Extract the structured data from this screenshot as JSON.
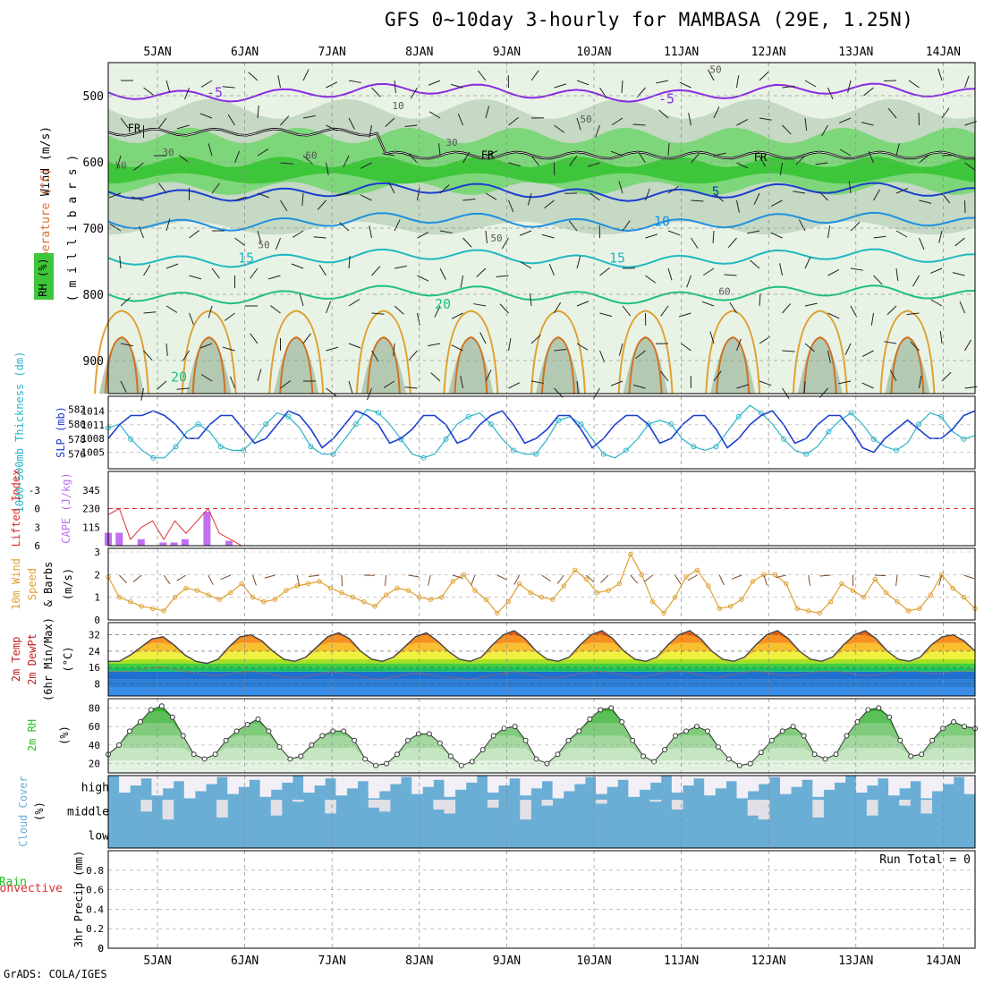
{
  "title": "GFS 0~10day 3-hourly for MAMBASA (29E, 1.25N)",
  "credit": "GrADS: COLA/IGES",
  "dates": [
    "5JAN",
    "6JAN",
    "7JAN",
    "8JAN",
    "9JAN",
    "10JAN",
    "11JAN",
    "12JAN",
    "13JAN",
    "14JAN"
  ],
  "panel_labels": {
    "upper": {
      "wind": "Wind (m/s)",
      "temperature": "Temperature (°C)",
      "rh": "RH (%)",
      "pressure": "( m i l l i b a r s )"
    },
    "slp": {
      "thickness": "1000-500mb Thickness (dm)",
      "slp": "SLP (mb)"
    },
    "cape": {
      "li": "Lifted Index",
      "cape": "CAPE (J/kg)"
    },
    "wind10": {
      "line1": "10m Wind",
      "line2": "Speed",
      "line3": "& Barbs",
      "unit": "(m/s)"
    },
    "temp2m": {
      "line1": "2m Temp",
      "line2": "2m DewPt",
      "line3": "(6hr Min/Max)",
      "unit": "(°C)"
    },
    "rh2m": {
      "line1": "2m RH",
      "unit": "(%)"
    },
    "cloud": {
      "line1": "Cloud Cover",
      "unit": "(%)",
      "levels": [
        "high",
        "middle",
        "low"
      ]
    },
    "precip": {
      "line1": "Total / Rain",
      "line2": "Convective",
      "line3": "3hr Precip (mm)",
      "run_total": "Run Total = 0"
    }
  },
  "colors": {
    "temp_line": "#8a2be2",
    "fr_line": "#000000",
    "slp": "#1a3fd0",
    "thickness": "#2ab4c8",
    "li": "#e03030",
    "cape": "#c070f0",
    "wind10": "#e0a030",
    "rh_green": "#22c022",
    "cloud": "#6aaed6"
  },
  "chart_data": [
    {
      "type": "contour",
      "name": "upper-air",
      "x": [
        "5JAN",
        "6JAN",
        "7JAN",
        "8JAN",
        "9JAN",
        "10JAN",
        "11JAN",
        "12JAN",
        "13JAN",
        "14JAN"
      ],
      "ylabel": "( m i l l i b a r s )",
      "yticks": [
        500,
        600,
        700,
        800,
        900
      ],
      "ylim": [
        950,
        450
      ],
      "contour_labels": {
        "temperature": [
          "-5",
          "5",
          "10",
          "15",
          "20"
        ],
        "rh": [
          "10",
          "30",
          "50",
          "60"
        ],
        "freezing": "FR"
      },
      "temperature_levels_mb": {
        "-5": 495,
        "5": 645,
        "10": 690,
        "15": 745,
        "20": 800
      }
    },
    {
      "type": "line",
      "name": "slp-thickness",
      "yticks_left": [
        576,
        578,
        580,
        582
      ],
      "yticks_right": [
        1005,
        1008,
        1011,
        1014
      ],
      "series": [
        {
          "name": "SLP",
          "values": [
            1008,
            1011,
            1013,
            1013,
            1014,
            1013,
            1011,
            1008,
            1008,
            1011,
            1013,
            1013,
            1010,
            1007,
            1008,
            1011,
            1014,
            1013,
            1010,
            1006,
            1008,
            1011,
            1014,
            1013,
            1011,
            1007,
            1008,
            1010,
            1013,
            1013,
            1011,
            1007,
            1008,
            1011,
            1013,
            1014,
            1011,
            1007,
            1008,
            1010,
            1013,
            1013,
            1010,
            1006,
            1008,
            1011,
            1013,
            1013,
            1011,
            1007,
            1008,
            1011,
            1013,
            1013,
            1010,
            1006,
            1008,
            1011,
            1013,
            1014,
            1011,
            1007,
            1008,
            1011,
            1013,
            1013,
            1010,
            1006,
            1005,
            1008,
            1010,
            1012,
            1010,
            1008,
            1008,
            1010,
            1013,
            1014
          ]
        },
        {
          "name": "Thickness",
          "values": [
            579.5,
            580,
            578,
            576.5,
            575.5,
            575.5,
            577,
            579,
            580,
            579,
            577,
            576.5,
            576.5,
            578,
            580,
            581.5,
            581,
            579.5,
            577,
            576,
            576,
            578,
            580,
            582,
            581.5,
            580,
            578,
            576,
            575.5,
            576,
            578,
            580,
            581,
            581.5,
            580,
            578,
            576.5,
            576,
            576,
            578,
            580.5,
            581,
            580,
            578,
            576,
            575.5,
            576.5,
            578,
            580,
            580.5,
            580,
            578,
            577,
            576.5,
            577,
            579,
            581,
            582.5,
            581.5,
            580,
            578,
            576.5,
            576,
            577,
            579,
            580.5,
            581.5,
            580,
            578,
            577,
            576.5,
            577.5,
            580,
            581.5,
            581,
            579,
            578,
            578.5
          ]
        }
      ]
    },
    {
      "type": "bar",
      "name": "cape-li",
      "yticks_li": [
        "-3",
        "0",
        "3",
        "6"
      ],
      "yticks_cape": [
        115,
        230,
        345
      ],
      "series": [
        {
          "name": "CAPE",
          "values": [
            80,
            80,
            0,
            40,
            0,
            20,
            20,
            40,
            0,
            210,
            0,
            30,
            0,
            0,
            0,
            0,
            0,
            0,
            0,
            0,
            0,
            0,
            0,
            0,
            0,
            0,
            0,
            0,
            0,
            0,
            0,
            0,
            0,
            0,
            0,
            0,
            0,
            0,
            0,
            0,
            0,
            0,
            0,
            0,
            0,
            0,
            0,
            0,
            0,
            0,
            0,
            0,
            0,
            0,
            0,
            0,
            0,
            0,
            0,
            0,
            0,
            0,
            0,
            0,
            0,
            0,
            0,
            0,
            0,
            0,
            0,
            0,
            0,
            0,
            0,
            0,
            0,
            0,
            0,
            0
          ]
        },
        {
          "name": "Lifted Index",
          "values": [
            1,
            0,
            5,
            3,
            2,
            5,
            2,
            4,
            2,
            0,
            4,
            5,
            6,
            6,
            6,
            6,
            6,
            6,
            6,
            6,
            6,
            6,
            6,
            6,
            6,
            6,
            6,
            6,
            6,
            6,
            6,
            6,
            6,
            6,
            6,
            6,
            6,
            6,
            6,
            6,
            6,
            6,
            6,
            6,
            6,
            6,
            6,
            6,
            6,
            6,
            6,
            6,
            6,
            6,
            6,
            6,
            6,
            6,
            6,
            6,
            6,
            6,
            6,
            6,
            6,
            6,
            6,
            6,
            6,
            6,
            6,
            6,
            6,
            6,
            6,
            6,
            6,
            6,
            6
          ]
        }
      ]
    },
    {
      "type": "line",
      "name": "wind10m",
      "yticks": [
        0,
        1,
        2,
        3
      ],
      "ylim": [
        0,
        3
      ],
      "series": [
        {
          "name": "10m Wind Speed",
          "values": [
            1.9,
            1.0,
            0.8,
            0.6,
            0.5,
            0.4,
            1.0,
            1.4,
            1.3,
            1.1,
            0.9,
            1.2,
            1.6,
            1.0,
            0.8,
            0.9,
            1.3,
            1.5,
            1.6,
            1.7,
            1.4,
            1.2,
            1.0,
            0.8,
            0.6,
            1.1,
            1.4,
            1.3,
            1.0,
            0.9,
            1.0,
            1.7,
            2.0,
            1.3,
            0.9,
            0.3,
            0.8,
            1.6,
            1.2,
            1.0,
            0.9,
            1.5,
            2.2,
            1.8,
            1.2,
            1.3,
            1.6,
            2.9,
            2.0,
            0.8,
            0.3,
            1.0,
            1.9,
            2.2,
            1.5,
            0.5,
            0.6,
            0.9,
            1.7,
            2.0,
            2.0,
            1.6,
            0.5,
            0.4,
            0.3,
            0.8,
            1.6,
            1.3,
            1.0,
            1.8,
            1.2,
            0.8,
            0.4,
            0.5,
            1.1,
            2.0,
            1.4,
            1.0,
            0.5
          ]
        }
      ]
    },
    {
      "type": "area",
      "name": "temp2m",
      "yticks": [
        8,
        16,
        24,
        32
      ],
      "ylim": [
        2,
        38
      ],
      "series": [
        {
          "name": "2m Temp",
          "values": [
            19,
            19,
            22,
            26,
            30,
            31,
            27,
            22,
            19,
            18,
            20,
            26,
            31,
            32,
            29,
            24,
            20,
            19,
            21,
            26,
            31,
            33,
            30,
            24,
            20,
            19,
            21,
            26,
            31,
            33,
            29,
            24,
            20,
            19,
            21,
            27,
            32,
            34,
            30,
            24,
            20,
            19,
            21,
            27,
            32,
            34,
            30,
            24,
            20,
            19,
            21,
            27,
            32,
            34,
            30,
            24,
            20,
            19,
            21,
            27,
            32,
            34,
            30,
            24,
            20,
            19,
            21,
            27,
            32,
            34,
            30,
            24,
            20,
            19,
            21,
            27,
            31,
            32,
            29,
            24
          ]
        },
        {
          "name": "2m DewPt",
          "values": [
            14,
            14,
            14,
            15,
            16,
            16,
            15,
            14,
            13,
            12,
            12,
            13,
            14,
            14,
            13,
            12,
            11,
            11,
            12,
            13,
            14,
            13,
            12,
            11,
            10,
            11,
            12,
            13,
            13,
            12,
            11,
            11,
            10,
            11,
            12,
            13,
            14,
            13,
            12,
            11,
            11,
            12,
            13,
            14,
            14,
            13,
            12,
            11,
            12,
            13,
            14,
            14,
            13,
            12,
            11,
            12,
            13,
            14,
            14,
            13,
            12,
            12,
            13,
            14,
            14,
            14,
            13,
            12,
            12,
            13,
            14,
            14,
            14,
            13,
            13,
            14,
            14,
            15
          ]
        }
      ]
    },
    {
      "type": "area",
      "name": "rh2m",
      "yticks": [
        20,
        40,
        60,
        80
      ],
      "ylim": [
        10,
        90
      ],
      "series": [
        {
          "name": "2m RH",
          "values": [
            30,
            40,
            55,
            65,
            78,
            82,
            70,
            50,
            30,
            25,
            30,
            45,
            55,
            62,
            68,
            55,
            38,
            25,
            28,
            40,
            50,
            55,
            55,
            45,
            25,
            18,
            20,
            30,
            45,
            52,
            52,
            42,
            28,
            18,
            22,
            35,
            50,
            58,
            60,
            45,
            25,
            20,
            30,
            45,
            55,
            68,
            78,
            80,
            65,
            45,
            28,
            22,
            35,
            50,
            55,
            60,
            55,
            38,
            25,
            18,
            20,
            32,
            45,
            55,
            60,
            50,
            30,
            25,
            30,
            50,
            65,
            78,
            80,
            70,
            45,
            28,
            30,
            45,
            58,
            65,
            60,
            58
          ]
        }
      ]
    },
    {
      "type": "heatmap",
      "name": "cloud-cover",
      "rows": [
        "high",
        "middle",
        "low"
      ]
    },
    {
      "type": "bar",
      "name": "precip",
      "yticks": [
        0,
        0.2,
        0.4,
        0.6,
        0.8
      ],
      "ylim": [
        0,
        1
      ],
      "series": [
        {
          "name": "3hr Precip",
          "values": []
        }
      ]
    }
  ]
}
